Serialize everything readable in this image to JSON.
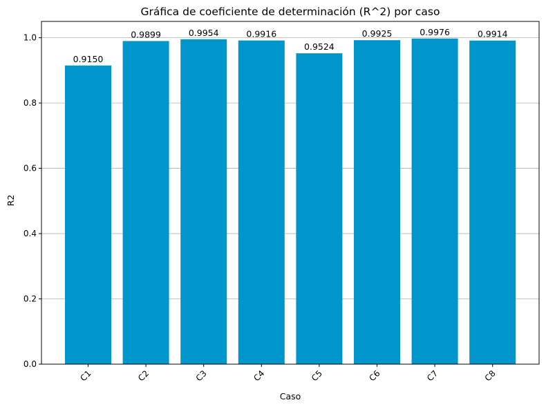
{
  "chart_data": {
    "type": "bar",
    "title": "Gráfica de coeficiente de determinación (R^2) por caso",
    "xlabel": "Caso",
    "ylabel": "R2",
    "categories": [
      "C1",
      "C2",
      "C3",
      "C4",
      "C5",
      "C6",
      "C7",
      "C8"
    ],
    "values": [
      0.915,
      0.9899,
      0.9954,
      0.9916,
      0.9524,
      0.9925,
      0.9976,
      0.9914
    ],
    "value_labels": [
      "0.9150",
      "0.9899",
      "0.9954",
      "0.9916",
      "0.9524",
      "0.9925",
      "0.9976",
      "0.9914"
    ],
    "ylim": [
      0,
      1.05
    ],
    "yticks": [
      0.0,
      0.2,
      0.4,
      0.6,
      0.8,
      1.0
    ],
    "ytick_labels": [
      "0.0",
      "0.2",
      "0.4",
      "0.6",
      "0.8",
      "1.0"
    ],
    "grid": "horizontal",
    "bar_color": "#0096cc",
    "xtick_rotation": "45 degrees"
  }
}
